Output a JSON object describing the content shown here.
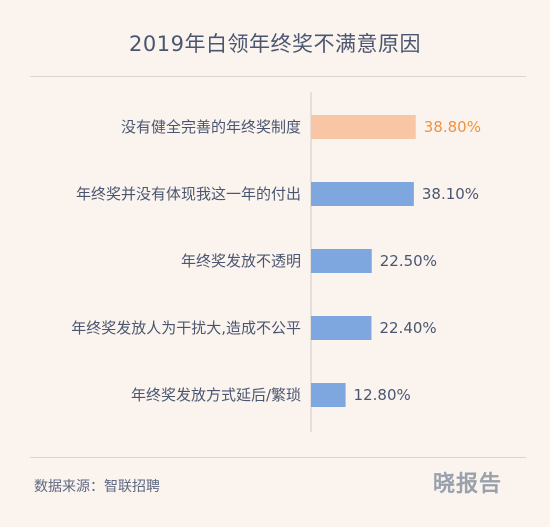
{
  "title": "2019年白领年终奖不满意原因",
  "source": "数据来源：智联招聘",
  "logo": "晓报告",
  "chart_data": {
    "type": "bar",
    "orientation": "horizontal",
    "categories": [
      "没有健全完善的年终奖制度",
      "年终奖并没有体现我这一年的付出",
      "年终奖发放不透明",
      "年终奖发放人为干扰大,造成不公平",
      "年终奖发放方式延后/繁琐"
    ],
    "values": [
      38.8,
      38.1,
      22.5,
      22.4,
      12.8
    ],
    "value_labels": [
      "38.80%",
      "38.10%",
      "22.50%",
      "22.40%",
      "12.80%"
    ],
    "highlight_index": 0,
    "colors": {
      "bar": "#7ea7e0",
      "highlight_bar": "#f8c6a5",
      "highlight_text": "#f2903f",
      "axis": "#cfcac6"
    },
    "xlim": [
      0,
      100
    ],
    "grid": false,
    "legend": "none"
  }
}
